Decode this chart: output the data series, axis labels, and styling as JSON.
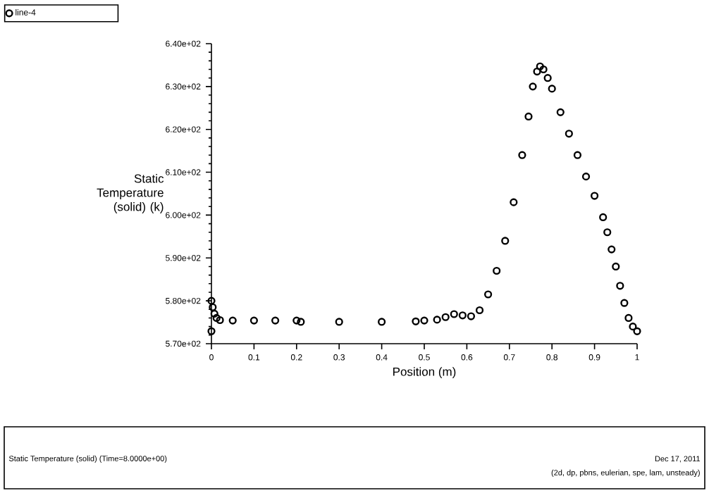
{
  "chart_data": {
    "type": "scatter",
    "xlabel": "Position (m)",
    "ylabel": "Static Temperature (solid) (k)",
    "annotations": [
      "Static Temperature (solid)   (Time=8.0000e+00)",
      "Dec 17, 2011",
      "(2d, dp, pbns, eulerian, spe, lam, unsteady)"
    ],
    "xlim": [
      0,
      1
    ],
    "ylim": [
      570,
      640
    ],
    "xticks": [
      0,
      0.1,
      0.2,
      0.3,
      0.4,
      0.5,
      0.6,
      0.7,
      0.8,
      0.9,
      1
    ],
    "yticks": [
      {
        "value": 570,
        "label": "5.70e+02"
      },
      {
        "value": 580,
        "label": "5.80e+02"
      },
      {
        "value": 590,
        "label": "5.90e+02"
      },
      {
        "value": 600,
        "label": "6.00e+02"
      },
      {
        "value": 610,
        "label": "6.10e+02"
      },
      {
        "value": 620,
        "label": "6.20e+02"
      },
      {
        "value": 630,
        "label": "6.30e+02"
      },
      {
        "value": 640,
        "label": "6.40e+02"
      }
    ],
    "grid": false,
    "legend": "top left",
    "marker": "circle",
    "series": [
      {
        "name": "line-4",
        "color": "#000000",
        "x": [
          0,
          0,
          0.003,
          0.007,
          0.012,
          0.02,
          0.05,
          0.1,
          0.15,
          0.2,
          0.21,
          0.3,
          0.4,
          0.48,
          0.5,
          0.53,
          0.55,
          0.57,
          0.59,
          0.61,
          0.63,
          0.65,
          0.67,
          0.69,
          0.71,
          0.73,
          0.745,
          0.755,
          0.765,
          0.772,
          0.78,
          0.79,
          0.8,
          0.82,
          0.84,
          0.86,
          0.88,
          0.9,
          0.92,
          0.93,
          0.94,
          0.95,
          0.96,
          0.97,
          0.98,
          0.99,
          1.0
        ],
        "values": [
          572.9,
          580,
          578.5,
          577,
          576,
          575.5,
          575.4,
          575.4,
          575.4,
          575.4,
          575.1,
          575.1,
          575.1,
          575.2,
          575.4,
          575.6,
          576.2,
          576.9,
          576.6,
          576.4,
          577.8,
          581.5,
          587,
          594,
          603,
          614,
          623,
          630,
          633.5,
          634.7,
          634,
          632,
          629.5,
          624,
          619,
          614,
          609,
          604.5,
          599.5,
          596,
          592,
          588,
          583.5,
          579.5,
          576,
          574,
          572.9
        ]
      }
    ]
  }
}
